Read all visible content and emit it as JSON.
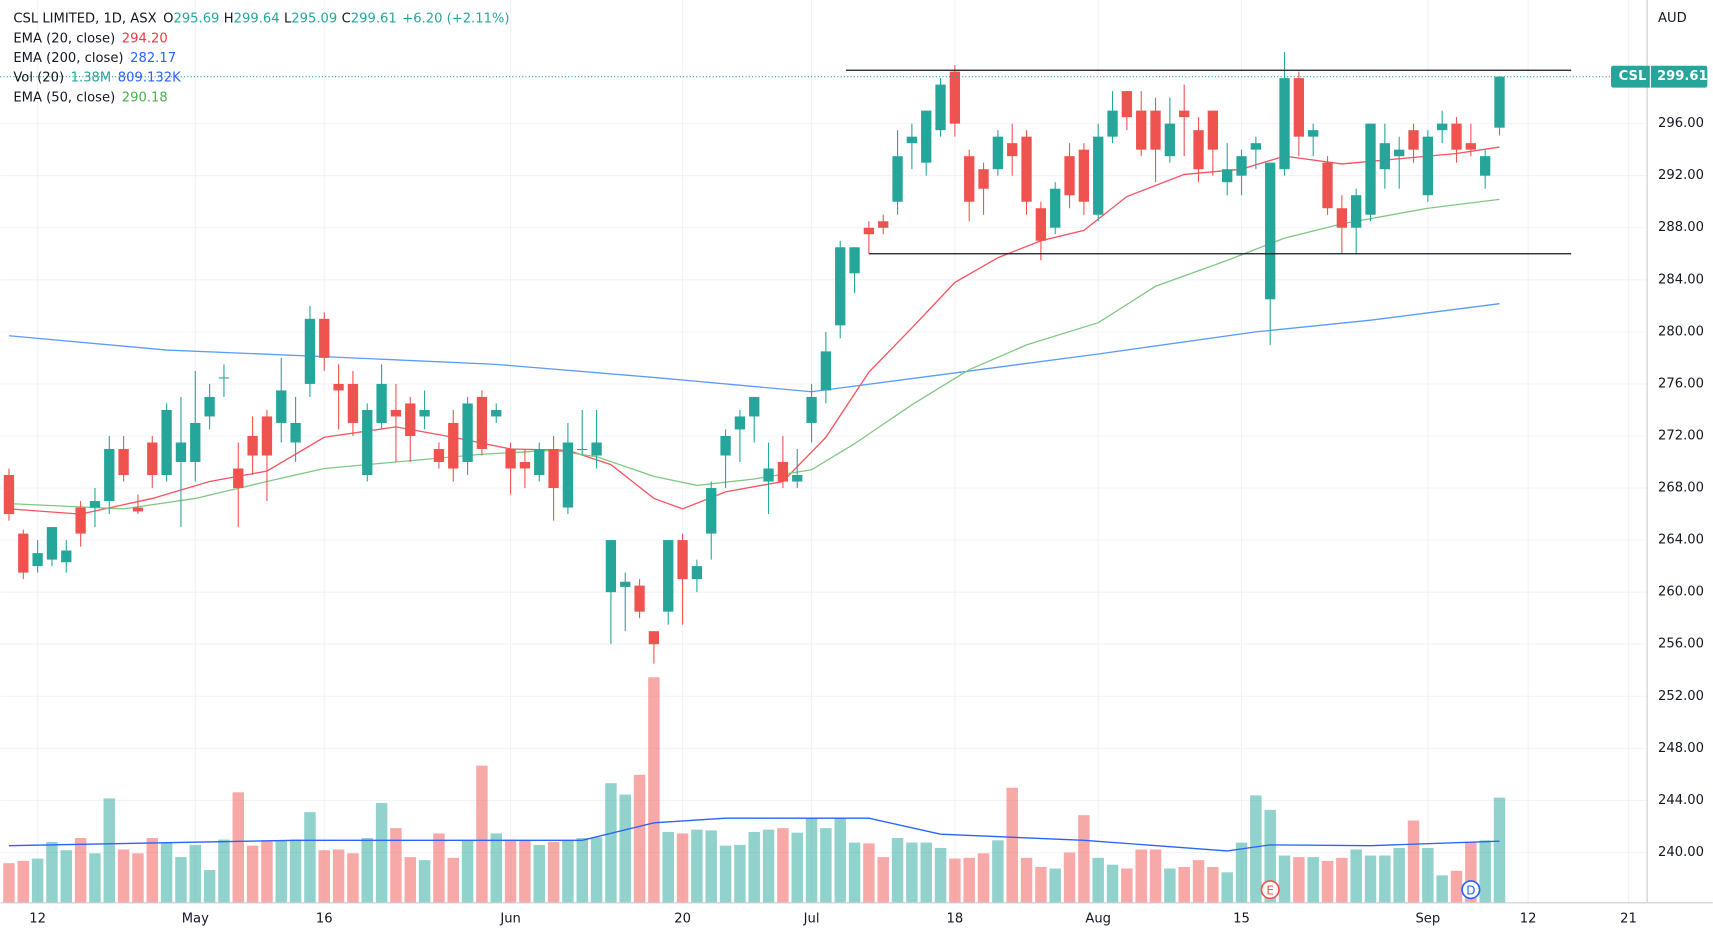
{
  "chart_data": {
    "type": "candlestick",
    "symbol": "CSL LIMITED, 1D, ASX",
    "ohlc_keys": [
      "O",
      "H",
      "L",
      "C"
    ],
    "change": "+6.20 (+2.11%)",
    "ticker": "CSL",
    "currency": "AUD",
    "colors": {
      "up": "#26a69a",
      "down": "#ef5350"
    },
    "grid": true,
    "xlim": [
      -0.61,
      114.3
    ],
    "ylim": [
      236.13,
      305.5
    ],
    "yticks": [
      {
        "value": 240,
        "label": "240.00"
      },
      {
        "value": 244,
        "label": "244.00"
      },
      {
        "value": 248,
        "label": "248.00"
      },
      {
        "value": 252,
        "label": "252.00"
      },
      {
        "value": 256,
        "label": "256.00"
      },
      {
        "value": 260,
        "label": "260.00"
      },
      {
        "value": 264,
        "label": "264.00"
      },
      {
        "value": 268,
        "label": "268.00"
      },
      {
        "value": 272,
        "label": "272.00"
      },
      {
        "value": 276,
        "label": "276.00"
      },
      {
        "value": 280,
        "label": "280.00"
      },
      {
        "value": 284,
        "label": "284.00"
      },
      {
        "value": 288,
        "label": "288.00"
      },
      {
        "value": 292,
        "label": "292.00"
      },
      {
        "value": 296,
        "label": "296.00"
      }
    ],
    "xticks": [
      {
        "value": 2,
        "label": "12"
      },
      {
        "value": 13,
        "label": "May"
      },
      {
        "value": 22,
        "label": "16"
      },
      {
        "value": 35,
        "label": "Jun"
      },
      {
        "value": 47,
        "label": "20"
      },
      {
        "value": 56,
        "label": "Jul"
      },
      {
        "value": 66,
        "label": "18"
      },
      {
        "value": 76,
        "label": "Aug"
      },
      {
        "value": 86,
        "label": "15"
      },
      {
        "value": 99,
        "label": "Sep"
      },
      {
        "value": 106,
        "label": "12"
      },
      {
        "value": 113,
        "label": "21"
      }
    ],
    "open": [
      269,
      264.5,
      262,
      262.5,
      262.3,
      266.5,
      266.5,
      267,
      271,
      266.5,
      271.5,
      269,
      270,
      270,
      273.5,
      276.5,
      269.5,
      272,
      273.5,
      273,
      271.5,
      276,
      281,
      276,
      276,
      269,
      273,
      274,
      274.5,
      273.5,
      271,
      273,
      270,
      275,
      273.5,
      271,
      270,
      269,
      271,
      266.5,
      271,
      270.5,
      260,
      260.4,
      260.5,
      257,
      258.5,
      264,
      261,
      264.5,
      270.5,
      272.5,
      273.5,
      268.5,
      270,
      268.5,
      273,
      275.5,
      280.5,
      284.5,
      288,
      288.5,
      290,
      294.5,
      293,
      295.5,
      300,
      293.5,
      292.5,
      292.5,
      294.5,
      295,
      289.5,
      288,
      293.5,
      294,
      289,
      295,
      298.5,
      297,
      297,
      293.5,
      297,
      295.5,
      297,
      291.5,
      292,
      294,
      282.5,
      292.5,
      299.5,
      295,
      293,
      289.5,
      288,
      289,
      292.5,
      293.5,
      295.5,
      290.5,
      295.5,
      296,
      294.5,
      292,
      295.69
    ],
    "high": [
      269.5,
      264.8,
      264,
      265,
      264,
      267,
      268,
      272,
      272,
      267.5,
      272,
      274.5,
      275,
      277,
      276,
      277.5,
      271.5,
      273.5,
      274,
      278,
      275,
      282,
      281.5,
      277.5,
      277,
      274.5,
      277.5,
      276,
      275,
      275.5,
      271.5,
      274,
      275,
      275.5,
      274.5,
      271.5,
      271,
      271.5,
      272,
      273,
      274,
      274,
      264,
      261.5,
      261,
      257,
      264,
      264.5,
      262.5,
      268.5,
      272.5,
      274,
      275,
      271.5,
      272,
      271,
      276,
      280,
      287,
      286.5,
      288.5,
      289,
      295.5,
      296,
      297,
      299.5,
      300.5,
      294,
      293,
      295.5,
      296,
      295.5,
      290,
      291.5,
      294.5,
      294.5,
      296,
      298.5,
      298.5,
      298.5,
      298,
      298,
      299,
      296.5,
      297,
      294.5,
      294,
      295,
      293,
      301.5,
      300,
      296,
      293.5,
      290.5,
      291,
      296,
      296,
      295,
      296,
      295.5,
      297,
      296.5,
      296,
      294,
      299.64
    ],
    "low": [
      265.5,
      261,
      261.5,
      262,
      261.5,
      263.5,
      265,
      266,
      268.5,
      266,
      268,
      268.5,
      265,
      268.5,
      272.5,
      275,
      265,
      269,
      267,
      271.5,
      270,
      275,
      277,
      272.5,
      272,
      268.5,
      272.5,
      270,
      270,
      272.5,
      269.5,
      268.5,
      269,
      270.5,
      273,
      267.5,
      268,
      268.5,
      265.5,
      266,
      270.5,
      269.5,
      256,
      257,
      258,
      254.5,
      257.5,
      257.5,
      260,
      262.5,
      268,
      270,
      271.5,
      266,
      268,
      268,
      271.5,
      274.5,
      279.5,
      283,
      286,
      287.5,
      289,
      292.5,
      292,
      295,
      295,
      288.5,
      289,
      292,
      292,
      289,
      285.5,
      287.5,
      289.5,
      289,
      288.5,
      294.5,
      295.5,
      293.5,
      291.5,
      293,
      293.5,
      291.5,
      292,
      290.5,
      290.5,
      292.5,
      279,
      292,
      293.5,
      293.5,
      289,
      286,
      286,
      288.5,
      291,
      291,
      293,
      290,
      294.5,
      293,
      293.5,
      291,
      295.09
    ],
    "close": [
      266,
      261.5,
      263,
      265,
      263.2,
      264.5,
      267,
      271,
      269,
      266.2,
      269,
      274,
      271.5,
      273,
      275,
      276.5,
      268,
      270.5,
      270.5,
      275.5,
      273,
      281,
      278,
      275.5,
      273,
      274,
      276,
      273.5,
      272,
      274,
      270,
      269.5,
      274.5,
      271,
      274,
      269.5,
      269.5,
      271,
      268,
      271.5,
      271,
      271.5,
      264,
      260.8,
      258.5,
      256,
      264,
      261,
      262,
      268,
      272,
      273.5,
      275,
      269.5,
      268.5,
      269,
      275,
      278.5,
      286.5,
      286.5,
      287.5,
      288,
      293.5,
      295,
      297,
      299,
      296,
      290,
      291,
      295,
      293.5,
      290,
      287,
      291,
      290.5,
      290,
      295,
      297,
      296.5,
      294,
      294,
      296,
      296.5,
      292.5,
      294,
      292.5,
      293.5,
      294.5,
      293,
      299.5,
      295,
      295.5,
      289.5,
      288,
      290.5,
      296,
      294.5,
      294,
      294,
      295,
      296,
      294,
      294,
      293.5,
      299.61
    ],
    "ema": [
      {
        "name": "EMA (20, close)",
        "value_label": "294.20",
        "color": "#f7525f",
        "x": [
          0,
          5,
          10,
          14,
          18,
          22,
          27,
          31,
          35,
          39,
          42,
          45,
          47,
          50,
          54,
          57,
          60,
          63,
          66,
          69,
          72,
          75,
          78,
          82,
          86,
          89,
          93,
          97,
          101,
          104
        ],
        "values": [
          266.4,
          266,
          267.2,
          268.5,
          269.3,
          271.9,
          272.7,
          271.9,
          271,
          270.9,
          269.8,
          267.2,
          266.4,
          267.7,
          268.5,
          271.9,
          276.9,
          280.3,
          283.8,
          285.7,
          287,
          287.8,
          290.4,
          292.1,
          292.5,
          293.5,
          292.9,
          293.3,
          293.7,
          294.2
        ]
      },
      {
        "name": "EMA (200, close)",
        "value_label": "282.17",
        "color": "#5b9cf6",
        "x": [
          0,
          11,
          22,
          34,
          45,
          56,
          65,
          76,
          87,
          95,
          104
        ],
        "values": [
          279.7,
          278.6,
          278.1,
          277.5,
          276.5,
          275.4,
          276.7,
          278.3,
          280,
          280.9,
          282.17
        ]
      },
      {
        "name": "EMA (50, close)",
        "value_label": "290.18",
        "color": "#81c784",
        "x": [
          0,
          8,
          13,
          18,
          22,
          27,
          33,
          38,
          41,
          45,
          48,
          52,
          56,
          59,
          63,
          67,
          71,
          76,
          80,
          85,
          89,
          93,
          99,
          104
        ],
        "values": [
          266.8,
          266.4,
          267.2,
          268.5,
          269.5,
          270,
          270.6,
          270.9,
          270.4,
          268.9,
          268.2,
          268.7,
          269.4,
          271.4,
          274.4,
          277.1,
          279,
          280.7,
          283.5,
          285.5,
          287.2,
          288.3,
          289.5,
          290.18
        ]
      }
    ],
    "volume": {
      "name": "Vol (20)",
      "value_label": "1.38M",
      "vol_ylim": [
        0,
        5500000
      ],
      "values": [
        520000,
        550000,
        580000,
        800000,
        690000,
        850000,
        650000,
        1370000,
        700000,
        650000,
        850000,
        790000,
        600000,
        760000,
        430000,
        830000,
        1450000,
        750000,
        820000,
        820000,
        830000,
        1190000,
        690000,
        700000,
        650000,
        850000,
        1310000,
        980000,
        600000,
        560000,
        910000,
        590000,
        820000,
        1800000,
        910000,
        830000,
        820000,
        760000,
        800000,
        820000,
        850000,
        860000,
        1570000,
        1420000,
        1680000,
        2960000,
        930000,
        910000,
        960000,
        950000,
        750000,
        760000,
        930000,
        960000,
        980000,
        920000,
        1120000,
        980000,
        1110000,
        790000,
        780000,
        600000,
        850000,
        790000,
        790000,
        720000,
        580000,
        590000,
        650000,
        820000,
        1510000,
        590000,
        470000,
        450000,
        660000,
        1150000,
        590000,
        500000,
        450000,
        700000,
        700000,
        450000,
        470000,
        560000,
        470000,
        400000,
        790000,
        1410000,
        1220000,
        620000,
        600000,
        600000,
        550000,
        590000,
        700000,
        620000,
        620000,
        720000,
        1080000,
        720000,
        360000,
        420000,
        800000,
        820000,
        1380000
      ],
      "ma": {
        "value_label": "809.132K",
        "color": "#2962ff",
        "x": [
          0,
          20,
          40,
          45,
          50,
          60,
          65,
          75,
          85,
          88,
          95,
          104
        ],
        "values": [
          750000,
          820000,
          820000,
          1050000,
          1110000,
          1110000,
          900000,
          820000,
          680000,
          760000,
          750000,
          809132
        ]
      }
    },
    "hlines": [
      {
        "value": 300.1,
        "x": [
          58.4,
          109
        ]
      },
      {
        "value": 286,
        "x": [
          60,
          109
        ]
      }
    ],
    "events": [
      {
        "label": "E",
        "x": 88,
        "color": "#ef5350"
      },
      {
        "label": "D",
        "x": 102,
        "color": "#2962ff"
      }
    ]
  }
}
